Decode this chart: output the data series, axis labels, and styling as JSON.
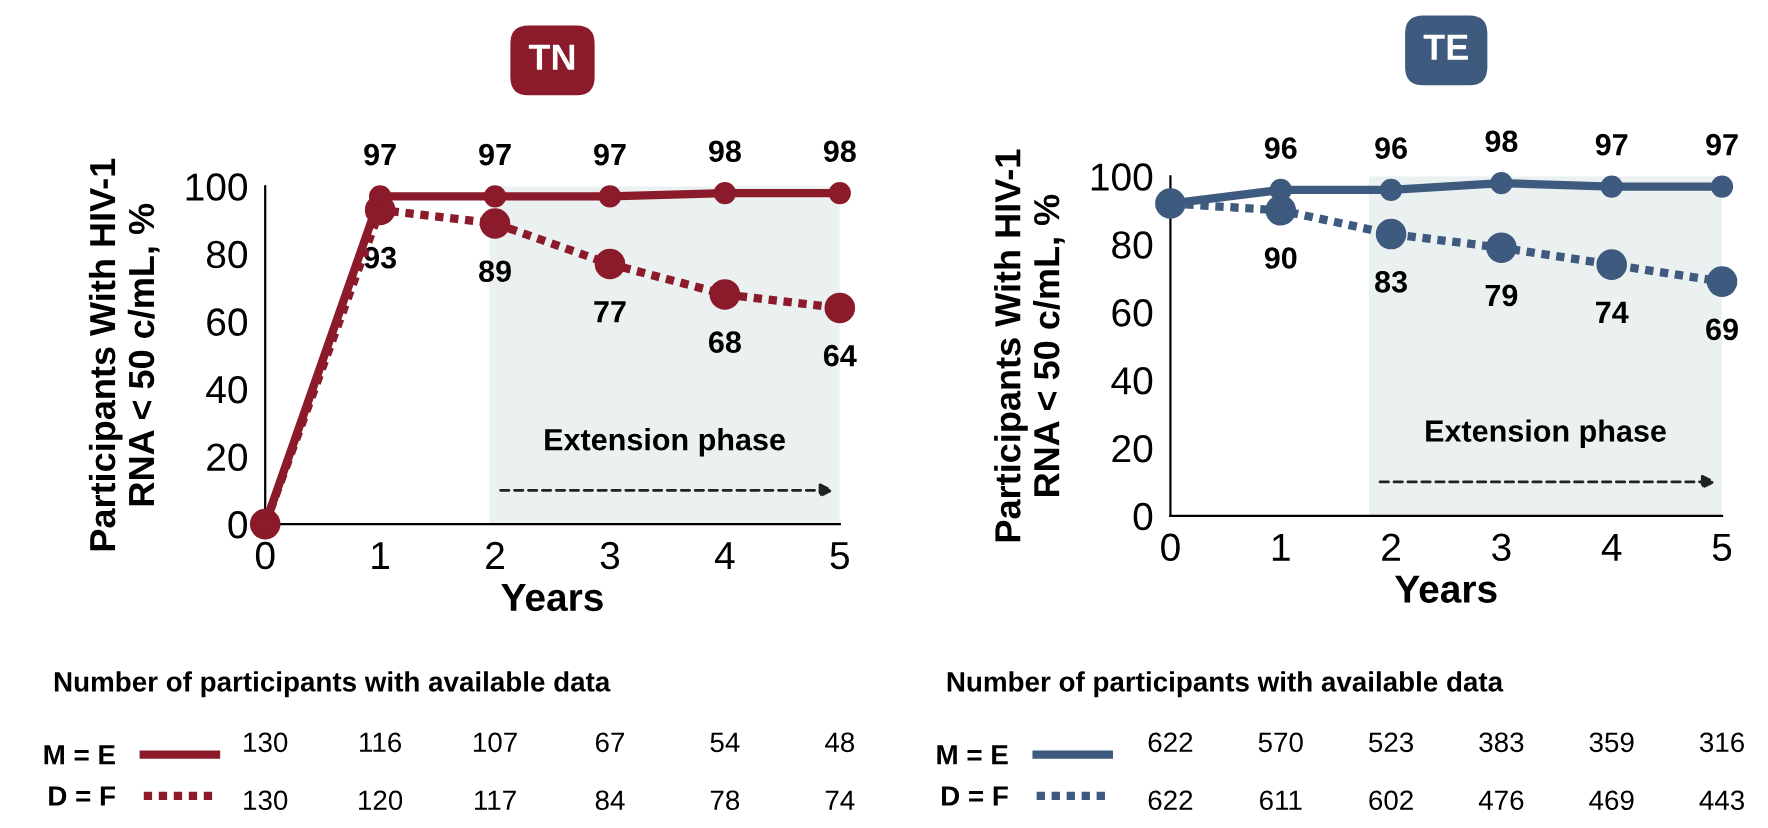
{
  "chart_data": [
    {
      "type": "line",
      "title": "TN",
      "xlabel": "Years",
      "ylabel": "Participants With HIV-1\nRNA < 50 c/mL, %",
      "x": [
        0,
        1,
        2,
        3,
        4,
        5
      ],
      "xlim": [
        0,
        5
      ],
      "ylim": [
        0,
        100
      ],
      "xticks": [
        0,
        1,
        2,
        3,
        4,
        5
      ],
      "yticks": [
        0,
        20,
        40,
        60,
        80,
        100
      ],
      "marker": "circle",
      "legend": "bottom",
      "series": [
        {
          "name": "M = E",
          "color": "#8b1a2b",
          "line_style": "solid",
          "values": [
            0,
            97,
            97,
            97,
            98,
            98
          ],
          "value_labels": [
            null,
            "97",
            "97",
            "97",
            "98",
            "98"
          ]
        },
        {
          "name": "D = F",
          "color": "#8b1a2b",
          "line_style": "dotted",
          "values": [
            0,
            93,
            89,
            77,
            68,
            64
          ],
          "value_labels": [
            null,
            "93",
            "89",
            "77",
            "68",
            "64"
          ]
        }
      ],
      "bands": [
        {
          "axis": "x",
          "from": 1.95,
          "to": 5,
          "label": "Extension phase",
          "color": "#ebf1f1"
        }
      ],
      "annotations": [
        "Number of participants with available data",
        "130",
        "116",
        "107",
        "67",
        "54",
        "48",
        "130",
        "120",
        "117",
        "84",
        "78",
        "74"
      ]
    },
    {
      "type": "line",
      "title": "TE",
      "xlabel": "Years",
      "ylabel": "Participants With HIV-1\nRNA < 50 c/mL, %",
      "x": [
        0,
        1,
        2,
        3,
        4,
        5
      ],
      "xlim": [
        0,
        5
      ],
      "ylim": [
        0,
        100
      ],
      "xticks": [
        0,
        1,
        2,
        3,
        4,
        5
      ],
      "yticks": [
        0,
        20,
        40,
        60,
        80,
        100
      ],
      "marker": "circle",
      "legend": "bottom",
      "series": [
        {
          "name": "M = E",
          "color": "#3e5a7e",
          "line_style": "solid",
          "values": [
            92,
            96,
            96,
            98,
            97,
            97
          ],
          "value_labels": [
            null,
            "96",
            "96",
            "98",
            "97",
            "97"
          ]
        },
        {
          "name": "D = F",
          "color": "#3e5a7e",
          "line_style": "dotted",
          "values": [
            92,
            90,
            83,
            79,
            74,
            69
          ],
          "value_labels": [
            null,
            "90",
            "83",
            "79",
            "74",
            "69"
          ]
        }
      ],
      "bands": [
        {
          "axis": "x",
          "from": 1.8,
          "to": 5,
          "label": "Extension phase",
          "color": "#ebf1f1"
        }
      ],
      "annotations": [
        "Number of participants with available data",
        "622",
        "570",
        "523",
        "383",
        "359",
        "316",
        "622",
        "611",
        "602",
        "476",
        "469",
        "443"
      ]
    }
  ]
}
